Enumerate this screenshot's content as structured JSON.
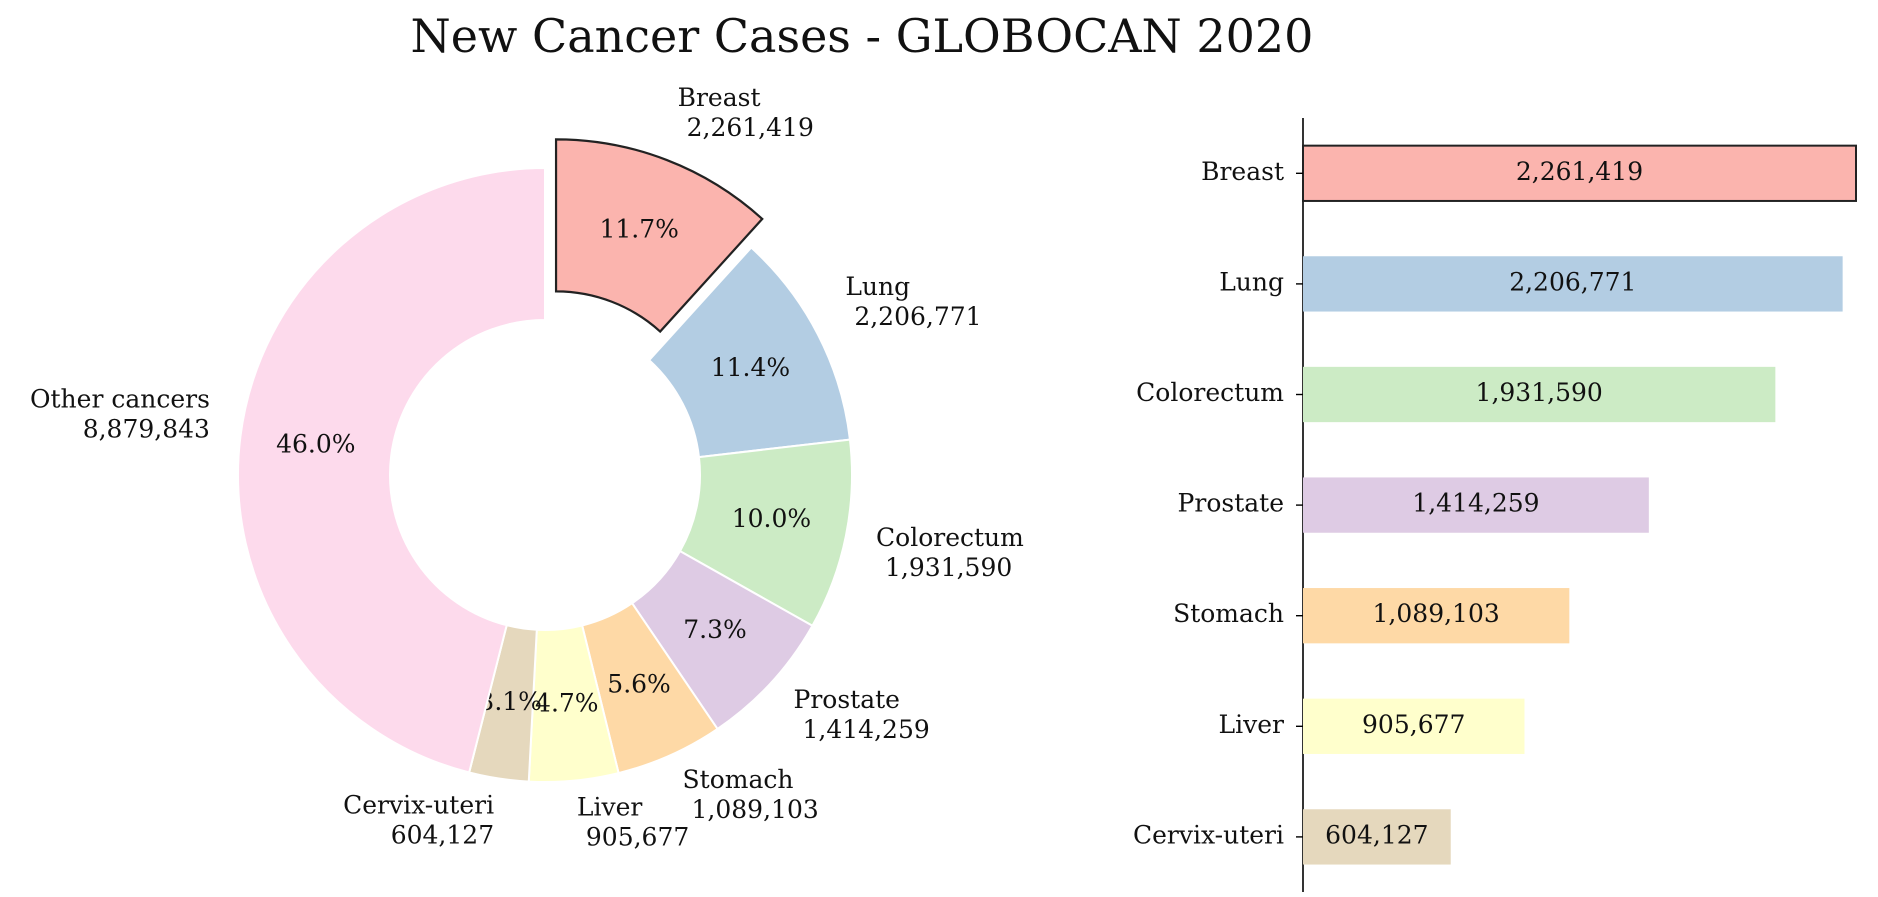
{
  "title": "New Cancer Cases - GLOBOCAN 2020",
  "chart_data": [
    {
      "type": "pie",
      "variant": "donut",
      "categories": [
        "Breast",
        "Lung",
        "Colorectum",
        "Prostate",
        "Stomach",
        "Liver",
        "Cervix-uteri",
        "Other cancers"
      ],
      "values": [
        2261419,
        2206771,
        1931590,
        1414259,
        1089103,
        905677,
        604127,
        8879843
      ],
      "value_labels": [
        "2,261,419",
        "2,206,771",
        "1,931,590",
        "1,414,259",
        "1,089,103",
        "905,677",
        "604,127",
        "8,879,843"
      ],
      "percent_labels": [
        "11.7%",
        "11.4%",
        "10.0%",
        "7.3%",
        "5.6%",
        "4.7%",
        "3.1%",
        "46.0%"
      ],
      "colors": [
        "#fbb4ae",
        "#b3cde3",
        "#ccebc5",
        "#decbe4",
        "#fed9a6",
        "#ffffcc",
        "#e5d8bd",
        "#fddaec"
      ],
      "exploded": [
        "Breast"
      ],
      "start": "top, clockwise"
    },
    {
      "type": "bar",
      "orientation": "horizontal",
      "categories": [
        "Breast",
        "Lung",
        "Colorectum",
        "Prostate",
        "Stomach",
        "Liver",
        "Cervix-uteri"
      ],
      "values": [
        2261419,
        2206771,
        1931590,
        1414259,
        1089103,
        905677,
        604127
      ],
      "value_labels": [
        "2,261,419",
        "2,206,771",
        "1,931,590",
        "1,414,259",
        "1,089,103",
        "905,677",
        "604,127"
      ],
      "colors": [
        "#fbb4ae",
        "#b3cde3",
        "#ccebc5",
        "#decbe4",
        "#fed9a6",
        "#ffffcc",
        "#e5d8bd"
      ],
      "highlighted": [
        "Breast"
      ],
      "xlim": [
        0,
        2261419
      ]
    }
  ]
}
